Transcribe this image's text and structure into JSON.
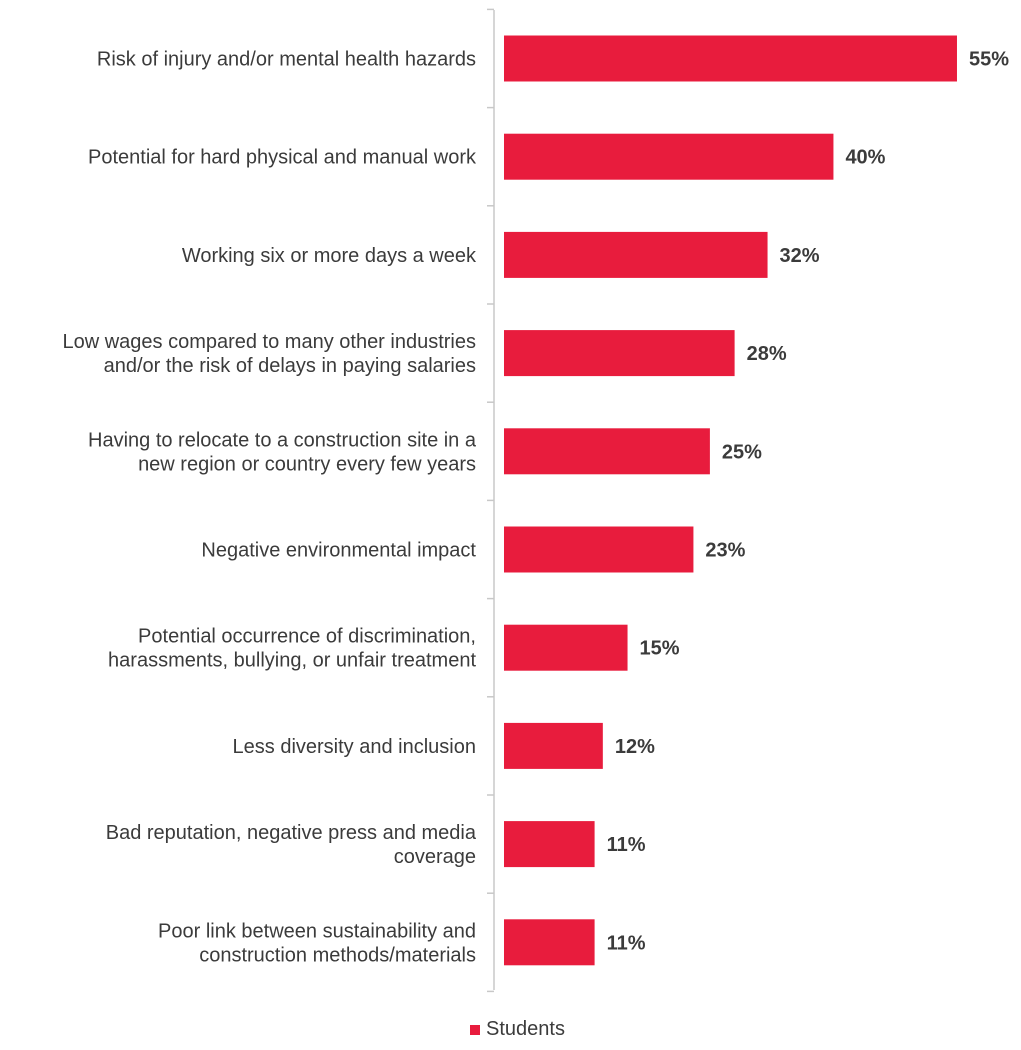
{
  "chart_data": {
    "type": "bar",
    "orientation": "horizontal",
    "title": "",
    "xlabel": "",
    "ylabel": "",
    "xlim": [
      0,
      55
    ],
    "grid": false,
    "legend_position": "bottom",
    "categories": [
      [
        "Risk of injury and/or mental health hazards"
      ],
      [
        "Potential for hard physical and manual work"
      ],
      [
        "Working six or more days a week"
      ],
      [
        "Low wages compared to many other industries",
        "and/or the risk of delays in paying salaries"
      ],
      [
        "Having to relocate to a construction site in a",
        "new region or country every few years"
      ],
      [
        "Negative environmental impact"
      ],
      [
        "Potential occurrence of discrimination,",
        "harassments, bullying, or unfair treatment"
      ],
      [
        "Less diversity and inclusion"
      ],
      [
        "Bad reputation, negative press and media",
        "coverage"
      ],
      [
        "Poor link between sustainability and",
        "construction methods/materials"
      ]
    ],
    "series": [
      {
        "name": "Students",
        "color": "#e81c3d",
        "values": [
          55,
          40,
          32,
          28,
          25,
          23,
          15,
          12,
          11,
          11
        ],
        "labels": [
          "55%",
          "40%",
          "32%",
          "28%",
          "25%",
          "23%",
          "15%",
          "12%",
          "11%",
          "11%"
        ]
      }
    ],
    "axis_color": "#c8c8c8"
  }
}
